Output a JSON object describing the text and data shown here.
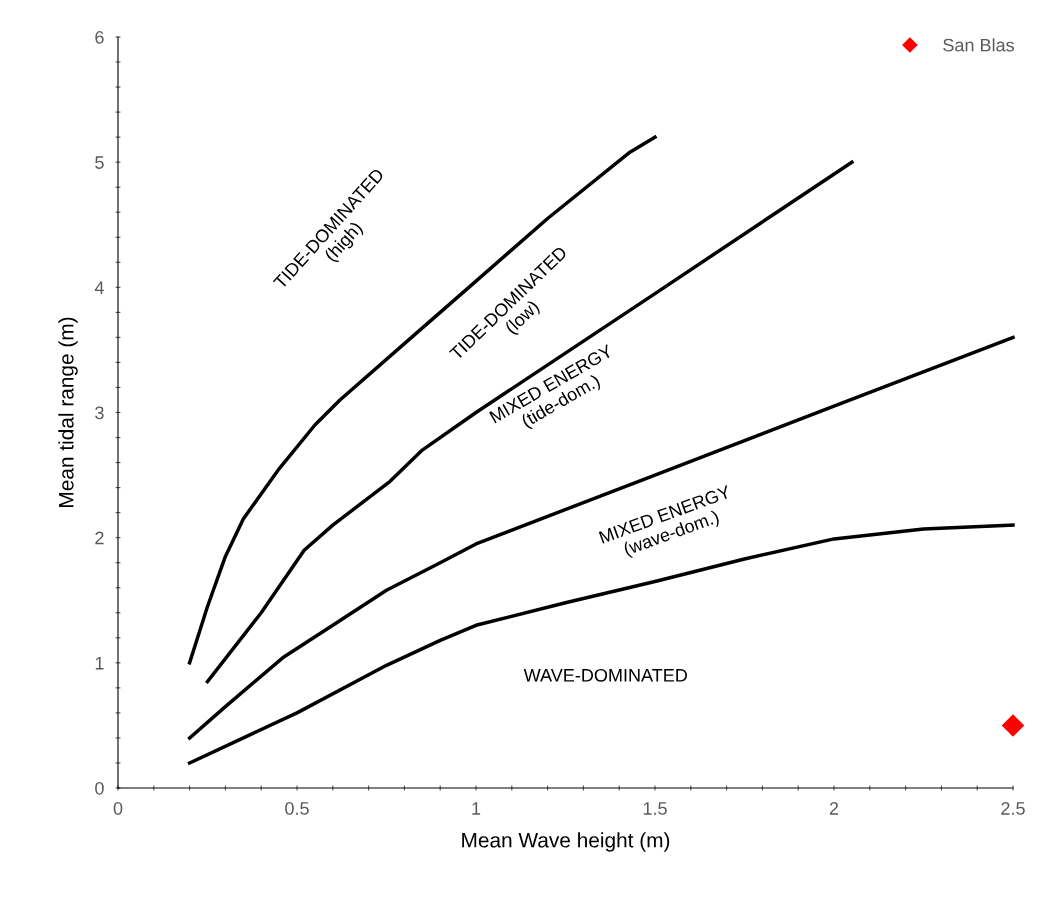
{
  "chart_data": {
    "type": "line",
    "xlabel": "Mean Wave height (m)",
    "ylabel": "Mean tidal range (m)",
    "xlim": [
      0,
      2.5
    ],
    "ylim": [
      0,
      6
    ],
    "xticks": [
      0,
      {
        "value": 0.1,
        "label": null
      },
      {
        "value": 0.2,
        "label": null
      },
      {
        "value": 0.3,
        "label": null
      },
      {
        "value": 0.4,
        "label": null
      },
      0.5,
      {
        "value": 0.6,
        "label": null
      },
      {
        "value": 0.7,
        "label": null
      },
      {
        "value": 0.8,
        "label": null
      },
      {
        "value": 0.9,
        "label": null
      },
      1,
      {
        "value": 1.1,
        "label": null
      },
      {
        "value": 1.2,
        "label": null
      },
      {
        "value": 1.3,
        "label": null
      },
      {
        "value": 1.4,
        "label": null
      },
      1.5,
      {
        "value": 1.6,
        "label": null
      },
      {
        "value": 1.7,
        "label": null
      },
      {
        "value": 1.8,
        "label": null
      },
      {
        "value": 1.9,
        "label": null
      },
      2,
      {
        "value": 2.1,
        "label": null
      },
      {
        "value": 2.2,
        "label": null
      },
      {
        "value": 2.3,
        "label": null
      },
      {
        "value": 2.4,
        "label": null
      },
      2.5
    ],
    "yticks": [
      0,
      {
        "value": 0.2,
        "label": null
      },
      {
        "value": 0.4,
        "label": null
      },
      {
        "value": 0.6,
        "label": null
      },
      {
        "value": 0.8,
        "label": null
      },
      1,
      {
        "value": 1.2,
        "label": null
      },
      {
        "value": 1.4,
        "label": null
      },
      {
        "value": 1.6,
        "label": null
      },
      {
        "value": 1.8,
        "label": null
      },
      2,
      {
        "value": 2.2,
        "label": null
      },
      {
        "value": 2.4,
        "label": null
      },
      {
        "value": 2.6,
        "label": null
      },
      {
        "value": 2.8,
        "label": null
      },
      3,
      {
        "value": 3.2,
        "label": null
      },
      {
        "value": 3.4,
        "label": null
      },
      {
        "value": 3.6,
        "label": null
      },
      {
        "value": 3.8,
        "label": null
      },
      4,
      {
        "value": 4.2,
        "label": null
      },
      {
        "value": 4.4,
        "label": null
      },
      {
        "value": 4.6,
        "label": null
      },
      {
        "value": 4.8,
        "label": null
      },
      5,
      {
        "value": 5.2,
        "label": null
      },
      {
        "value": 5.4,
        "label": null
      },
      {
        "value": 5.6,
        "label": null
      },
      {
        "value": 5.8,
        "label": null
      },
      6
    ],
    "grid": false,
    "legend": "top right",
    "marker": "none",
    "line_style": "solid",
    "series": [
      {
        "color": "#000000",
        "x": [
          0.2,
          0.25,
          0.3,
          0.35,
          0.45,
          0.55,
          0.62,
          0.8,
          1.0,
          1.2,
          1.43,
          1.5
        ],
        "values": [
          1.0,
          1.45,
          1.85,
          2.15,
          2.55,
          2.9,
          3.1,
          3.55,
          4.05,
          4.55,
          5.08,
          5.2
        ]
      },
      {
        "color": "#000000",
        "x": [
          0.25,
          0.4,
          0.52,
          0.6,
          0.76,
          0.85,
          1.0,
          1.5,
          2.05
        ],
        "values": [
          0.85,
          1.4,
          1.9,
          2.1,
          2.45,
          2.7,
          3.0,
          3.95,
          5.0
        ]
      },
      {
        "color": "#000000",
        "x": [
          0.2,
          0.3,
          0.46,
          0.6,
          0.75,
          0.9,
          1.0,
          1.5,
          2.0,
          2.5
        ],
        "values": [
          0.4,
          0.65,
          1.04,
          1.3,
          1.58,
          1.8,
          1.95,
          2.5,
          3.05,
          3.6
        ]
      },
      {
        "color": "#000000",
        "x": [
          0.2,
          0.5,
          0.75,
          0.9,
          1.0,
          1.25,
          1.5,
          1.75,
          2.0,
          2.25,
          2.5
        ],
        "values": [
          0.2,
          0.6,
          0.98,
          1.18,
          1.3,
          1.48,
          1.65,
          1.83,
          1.99,
          2.07,
          2.1
        ]
      },
      {
        "type": "scatter",
        "name": "San Blas",
        "color": "#ff0000",
        "marker": "diamond",
        "x": [
          2.5
        ],
        "values": [
          0.5
        ]
      }
    ],
    "annotations": [
      "TIDE-DOMINATED\n(high)",
      "TIDE-DOMINATED\n(low)",
      "MIXED ENERGY\n(tide-dom.)",
      "MIXED ENERGY\n(wave-dom.)",
      "WAVE-DOMINATED"
    ]
  }
}
